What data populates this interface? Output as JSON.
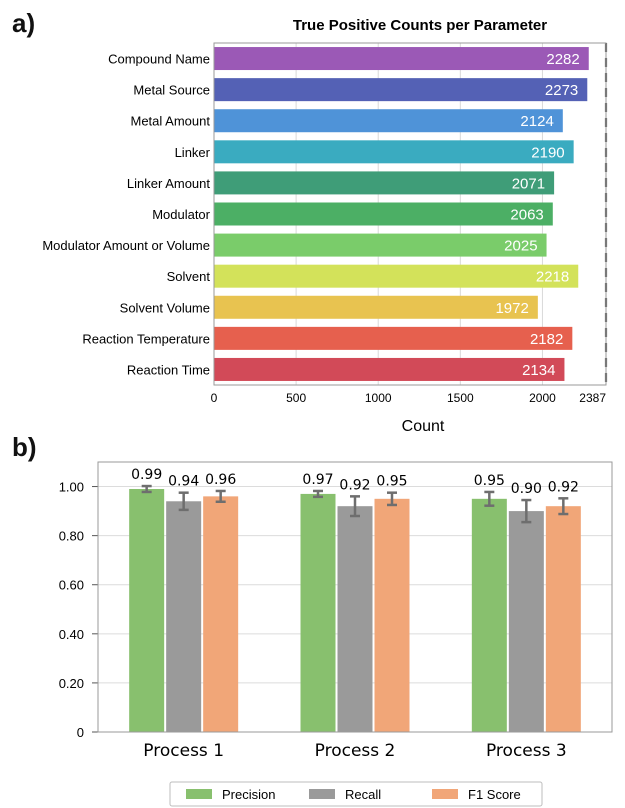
{
  "panels": {
    "a": {
      "label": "a)"
    },
    "b": {
      "label": "b)"
    }
  },
  "chart_data": [
    {
      "type": "bar",
      "orientation": "horizontal",
      "title": "True Positive Counts per Parameter",
      "xlabel": "Count",
      "ylabel": "",
      "categories": [
        "Compound Name",
        "Metal Source",
        "Metal Amount",
        "Linker",
        "Linker Amount",
        "Modulator",
        "Modulator Amount or Volume",
        "Solvent",
        "Solvent Volume",
        "Reaction Temperature",
        "Reaction Time"
      ],
      "values": [
        2282,
        2273,
        2124,
        2190,
        2071,
        2063,
        2025,
        2218,
        1972,
        2182,
        2134
      ],
      "colors": [
        "#9b59b6",
        "#5461b5",
        "#4f93d8",
        "#3aabc0",
        "#3f9d78",
        "#4caf65",
        "#7acc6a",
        "#d3e25a",
        "#e8c350",
        "#e6604e",
        "#d24a58"
      ],
      "xticks": [
        "0",
        "500",
        "1000",
        "1500",
        "2000",
        "2387"
      ],
      "xtick_values": [
        0,
        500,
        1000,
        1500,
        2000,
        2387
      ],
      "reference_line": 2387,
      "xlim": [
        0,
        2387
      ],
      "grid": true
    },
    {
      "type": "bar",
      "orientation": "vertical",
      "title": "",
      "categories": [
        "Process 1",
        "Process 2",
        "Process 3"
      ],
      "series": [
        {
          "name": "Precision",
          "color": "#88c06e",
          "values": [
            0.99,
            0.97,
            0.95
          ],
          "errors": [
            0.012,
            0.012,
            0.028
          ],
          "labels": [
            "0.99",
            "0.97",
            "0.95"
          ]
        },
        {
          "name": "Recall",
          "color": "#9a9a9a",
          "values": [
            0.94,
            0.92,
            0.9
          ],
          "errors": [
            0.035,
            0.04,
            0.045
          ],
          "labels": [
            "0.94",
            "0.92",
            "0.90"
          ]
        },
        {
          "name": "F1 Score",
          "color": "#f1a678",
          "values": [
            0.96,
            0.95,
            0.92
          ],
          "errors": [
            0.022,
            0.025,
            0.032
          ],
          "labels": [
            "0.96",
            "0.95",
            "0.92"
          ]
        }
      ],
      "ylim": [
        0,
        1.1
      ],
      "yticks": [
        "0",
        "0.20",
        "0.40",
        "0.60",
        "0.80",
        "1.00"
      ],
      "ytick_values": [
        0,
        0.2,
        0.4,
        0.6,
        0.8,
        1.0
      ],
      "legend": "bottom",
      "grid": true
    }
  ]
}
